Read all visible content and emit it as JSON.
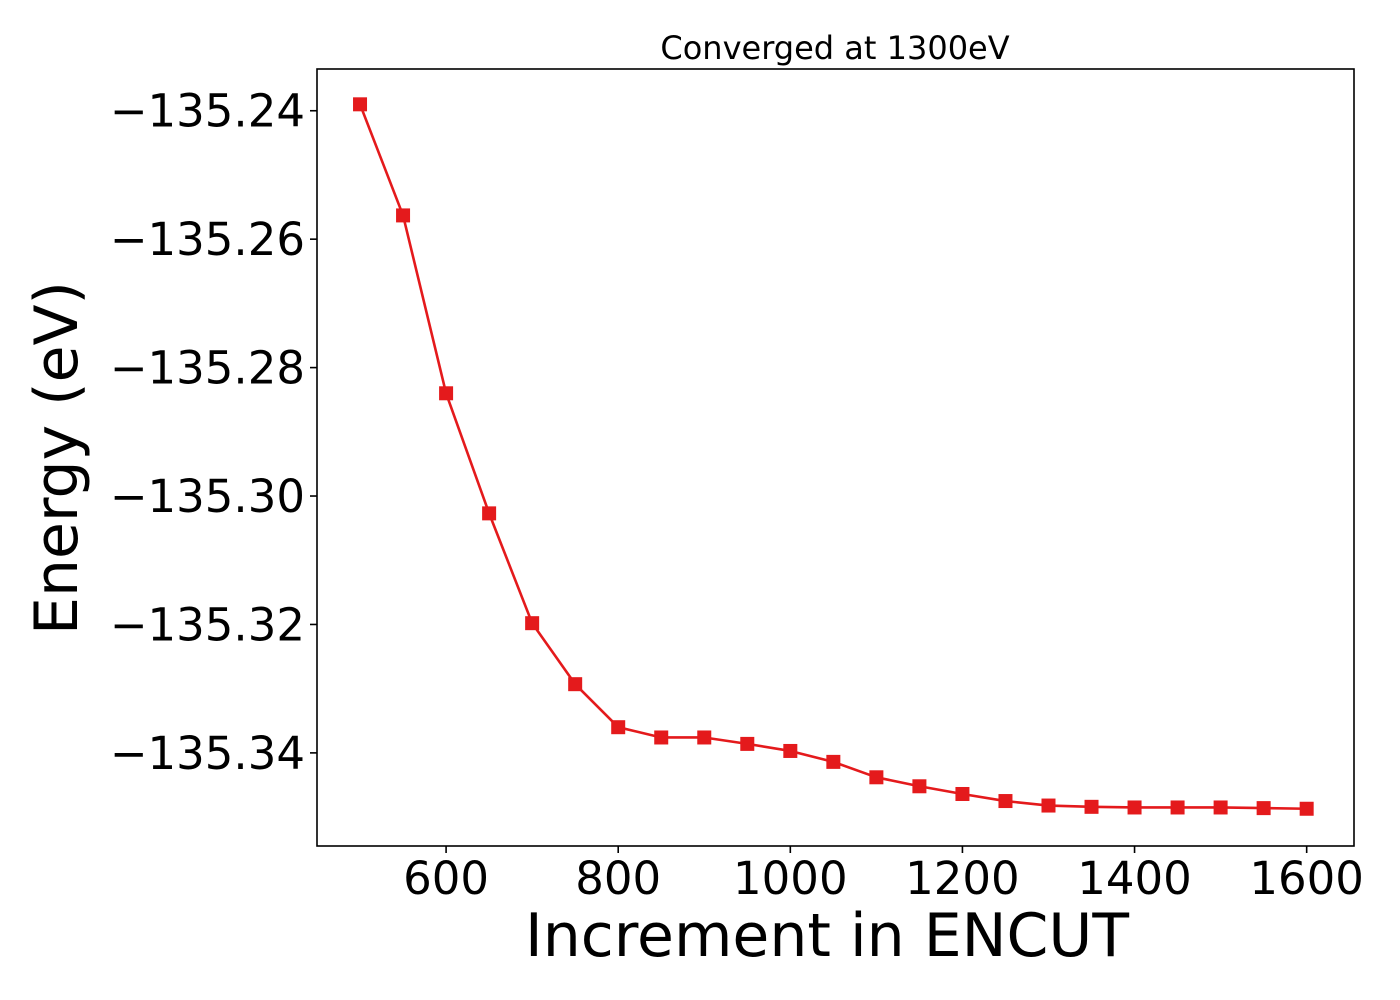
{
  "chart_data": {
    "type": "line",
    "title": "Converged at 1300eV",
    "xlabel": "Increment in ENCUT",
    "ylabel": "Energy (eV)",
    "xlim": [
      450,
      1655
    ],
    "ylim": [
      -135.3545,
      -135.2335
    ],
    "xticks": [
      600,
      800,
      1000,
      1200,
      1400,
      1600
    ],
    "xtick_labels": [
      "600",
      "800",
      "1000",
      "1200",
      "1400",
      "1600"
    ],
    "yticks": [
      -135.24,
      -135.26,
      -135.28,
      -135.3,
      -135.32,
      -135.34
    ],
    "ytick_labels": [
      "−135.24",
      "−135.26",
      "−135.28",
      "−135.30",
      "−135.32",
      "−135.34"
    ],
    "grid": false,
    "series": [
      {
        "color": "#e41a1c",
        "marker": "square",
        "x": [
          500,
          550,
          600,
          650,
          700,
          750,
          800,
          850,
          900,
          950,
          1000,
          1050,
          1100,
          1150,
          1200,
          1250,
          1300,
          1350,
          1400,
          1450,
          1500,
          1550,
          1600
        ],
        "y": [
          -135.239,
          -135.2563,
          -135.284,
          -135.3027,
          -135.3198,
          -135.3293,
          -135.336,
          -135.3376,
          -135.3376,
          -135.3386,
          -135.3397,
          -135.3414,
          -135.3438,
          -135.3452,
          -135.3464,
          -135.3475,
          -135.3482,
          -135.3484,
          -135.3485,
          -135.3485,
          -135.3485,
          -135.3486,
          -135.3487
        ]
      }
    ]
  }
}
